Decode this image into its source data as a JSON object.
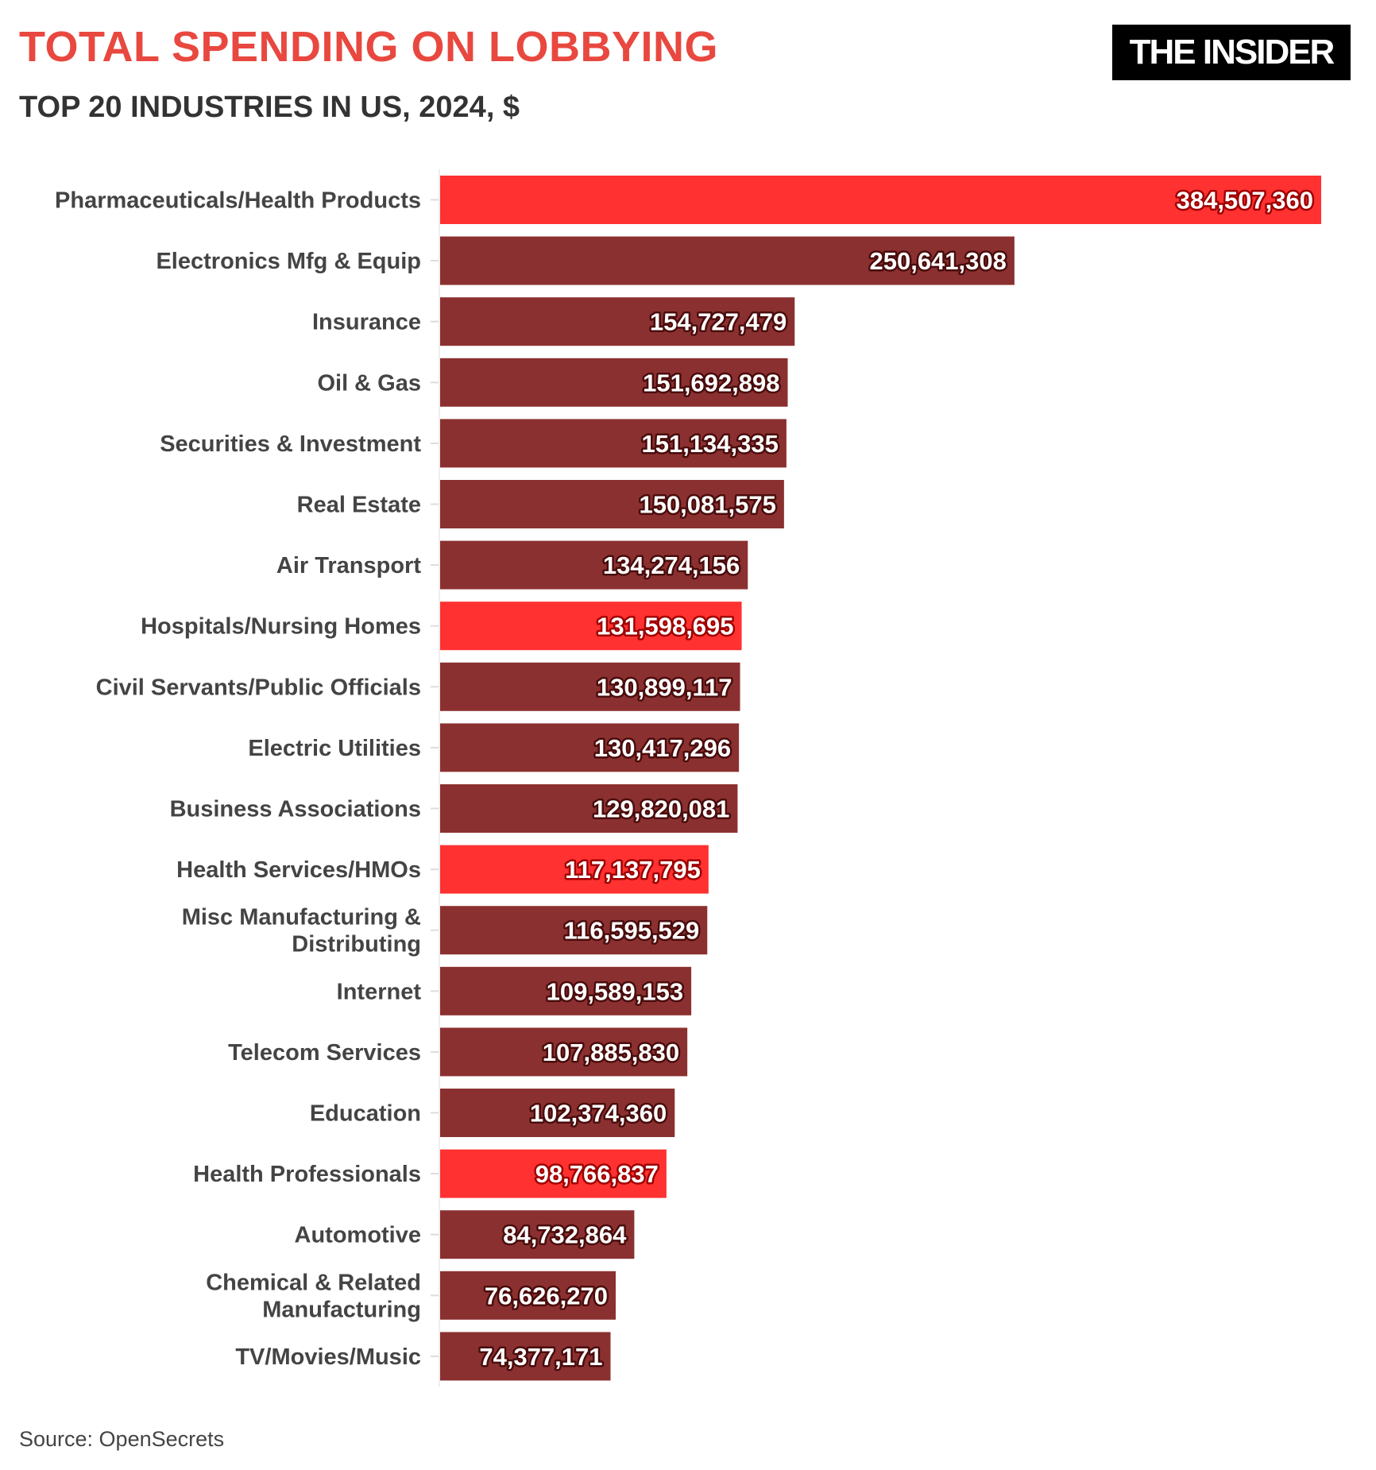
{
  "header": {
    "title": "TOTAL SPENDING ON LOBBYING",
    "subtitle": "TOP 20 INDUSTRIES IN US, 2024, $",
    "logo": "THE INSIDER"
  },
  "footer": {
    "source": "Source: OpenSecrets"
  },
  "colors": {
    "highlight": "#ff3131",
    "default": "#8b3030",
    "title": "#e8483f"
  },
  "chart_data": {
    "type": "bar",
    "orientation": "horizontal",
    "title": "TOTAL SPENDING ON LOBBYING",
    "subtitle": "TOP 20 INDUSTRIES IN US, 2024, $",
    "categories": [
      [
        "Pharmaceuticals/Health Products"
      ],
      [
        "Electronics Mfg & Equip"
      ],
      [
        "Insurance"
      ],
      [
        "Oil & Gas"
      ],
      [
        "Securities & Investment"
      ],
      [
        "Real Estate"
      ],
      [
        "Air Transport"
      ],
      [
        "Hospitals/Nursing Homes"
      ],
      [
        "Civil Servants/Public Officials"
      ],
      [
        "Electric Utilities"
      ],
      [
        "Business Associations"
      ],
      [
        "Health Services/HMOs"
      ],
      [
        "Misc Manufacturing &",
        "Distributing"
      ],
      [
        "Internet"
      ],
      [
        "Telecom Services"
      ],
      [
        "Education"
      ],
      [
        "Health Professionals"
      ],
      [
        "Automotive"
      ],
      [
        "Chemical & Related",
        "Manufacturing"
      ],
      [
        "TV/Movies/Music"
      ]
    ],
    "values": [
      384507360,
      250641308,
      154727479,
      151692898,
      151134335,
      150081575,
      134274156,
      131598695,
      130899117,
      130417296,
      129820081,
      117137795,
      116595529,
      109589153,
      107885830,
      102374360,
      98766837,
      84732864,
      76626270,
      74377171
    ],
    "value_labels": [
      "384,507,360",
      "250,641,308",
      "154,727,479",
      "151,692,898",
      "151,134,335",
      "150,081,575",
      "134,274,156",
      "131,598,695",
      "130,899,117",
      "130,417,296",
      "129,820,081",
      "117,137,795",
      "116,595,529",
      "109,589,153",
      "107,885,830",
      "102,374,360",
      "98,766,837",
      "84,732,864",
      "76,626,270",
      "74,377,171"
    ],
    "highlighted": [
      true,
      false,
      false,
      false,
      false,
      false,
      false,
      true,
      false,
      false,
      false,
      true,
      false,
      false,
      false,
      false,
      true,
      false,
      false,
      false
    ],
    "xlim": [
      0,
      384507360
    ],
    "grid": false,
    "legend": "none"
  }
}
